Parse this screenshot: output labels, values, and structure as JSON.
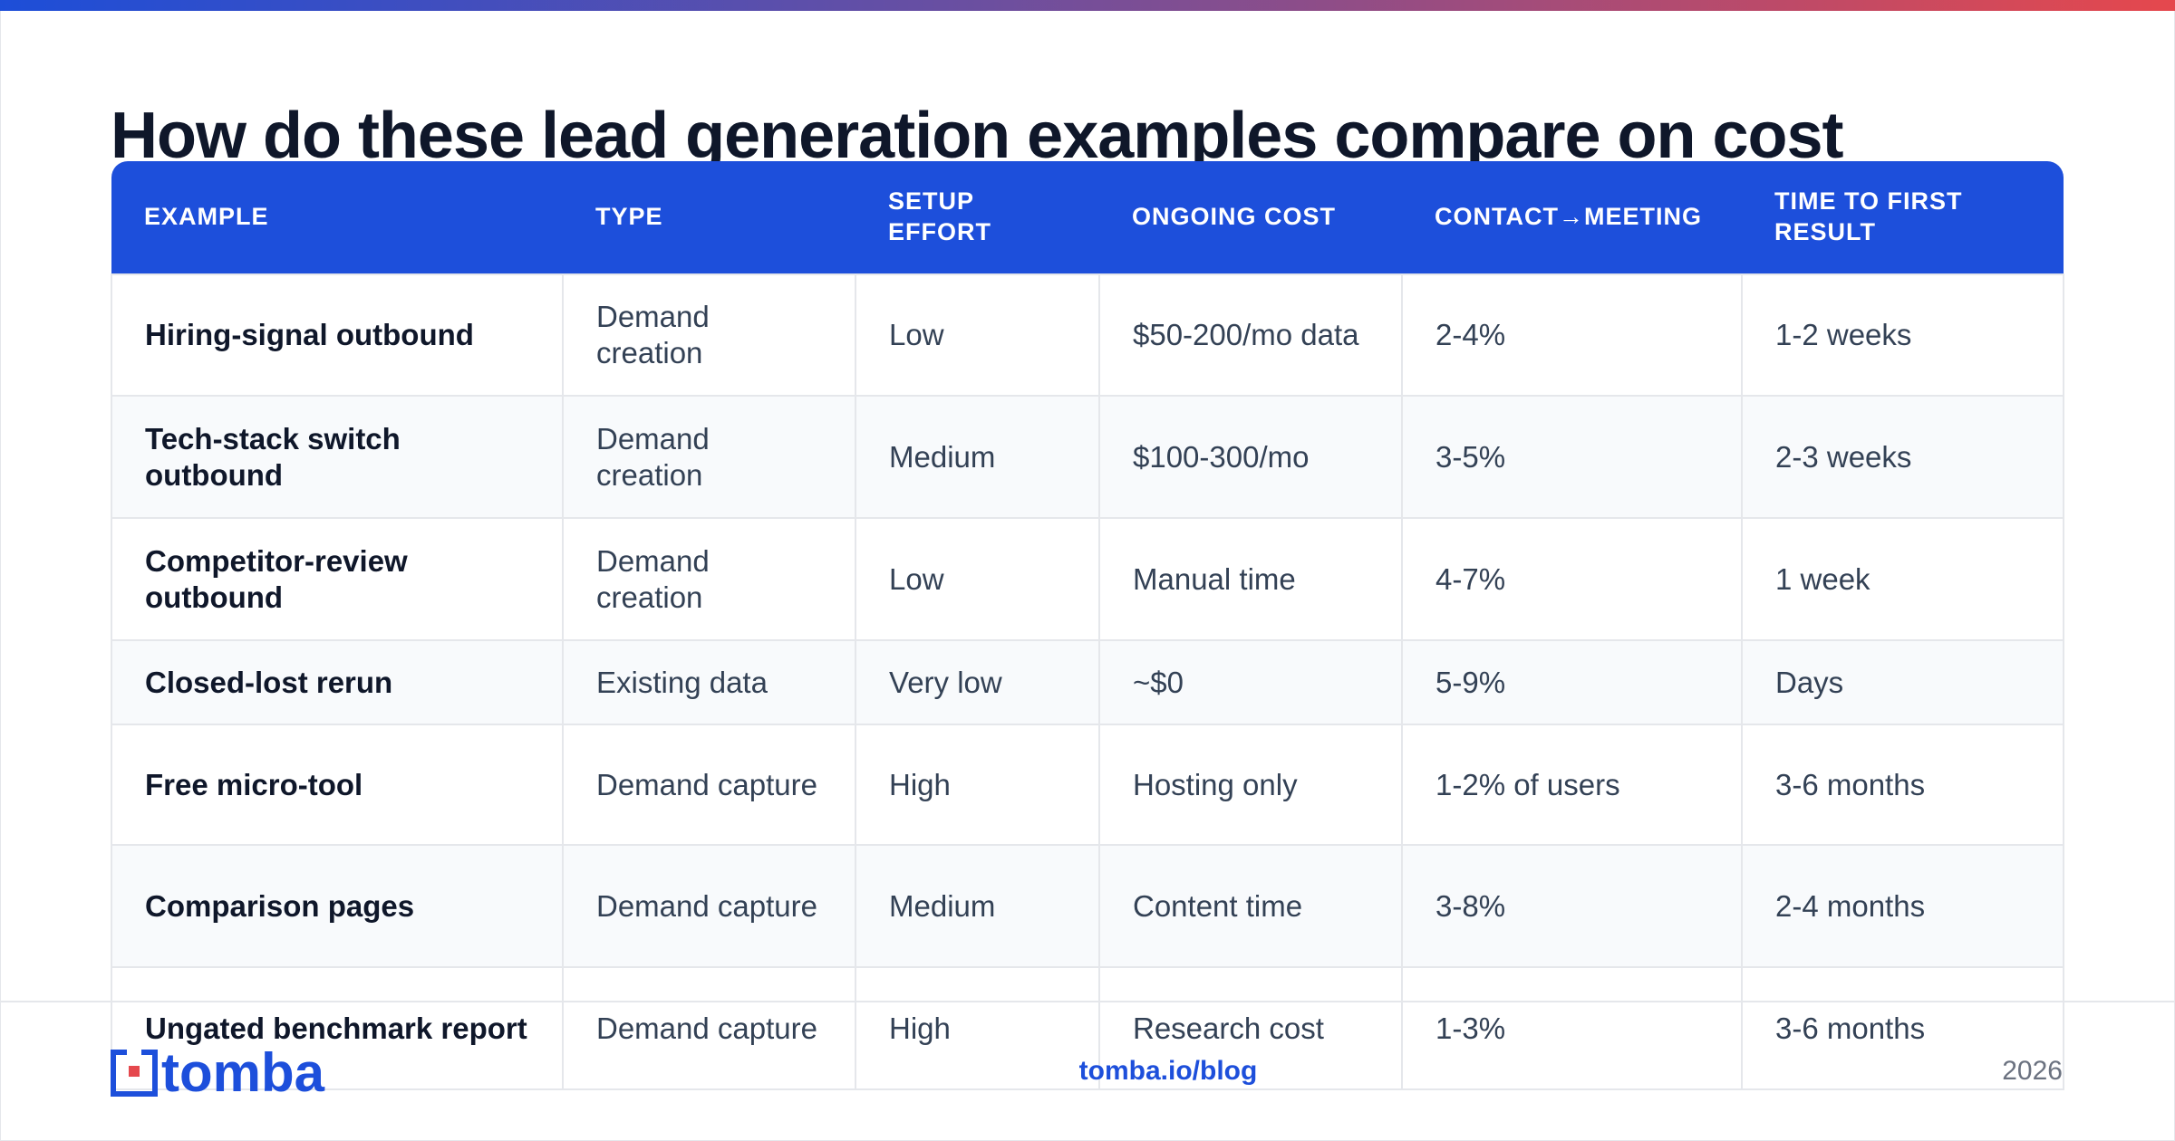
{
  "title": "How do these lead generation examples compare on cost",
  "table": {
    "headers": [
      "EXAMPLE",
      "TYPE",
      "SETUP EFFORT",
      "ONGOING COST",
      "CONTACT→MEETING",
      "TIME TO FIRST RESULT"
    ],
    "rows": [
      [
        "Hiring-signal outbound",
        "Demand creation",
        "Low",
        "$50-200/mo data",
        "2-4%",
        "1-2 weeks"
      ],
      [
        "Tech-stack switch outbound",
        "Demand creation",
        "Medium",
        "$100-300/mo",
        "3-5%",
        "2-3 weeks"
      ],
      [
        "Competitor-review outbound",
        "Demand creation",
        "Low",
        "Manual time",
        "4-7%",
        "1 week"
      ],
      [
        "Closed-lost rerun",
        "Existing data",
        "Very low",
        "~$0",
        "5-9%",
        "Days"
      ],
      [
        "Free micro-tool",
        "Demand capture",
        "High",
        "Hosting only",
        "1-2% of users",
        "3-6 months"
      ],
      [
        "Comparison pages",
        "Demand capture",
        "Medium",
        "Content time",
        "3-8%",
        "2-4 months"
      ],
      [
        "Ungated benchmark report",
        "Demand capture",
        "High",
        "Research cost",
        "1-3%",
        "3-6 months"
      ]
    ]
  },
  "footer": {
    "logo": "tomba",
    "url": "tomba.io/blog",
    "year": "2026"
  }
}
